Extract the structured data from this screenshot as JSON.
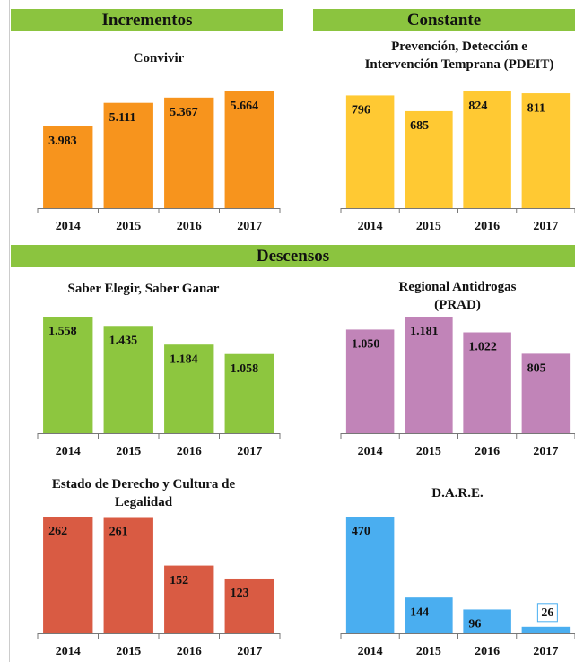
{
  "sections": [
    "Incrementos",
    "Constante",
    "Descensos"
  ],
  "chart_data": [
    {
      "type": "bar",
      "title": "Convivir",
      "categories": [
        "2014",
        "2015",
        "2016",
        "2017"
      ],
      "values": [
        3983,
        5111,
        5367,
        5664
      ],
      "value_labels": [
        "3.983",
        "5.111",
        "5.367",
        "5.664"
      ],
      "color": "#f7941d"
    },
    {
      "type": "bar",
      "title": "Prevención, Detección e Intervención Temprana (PDEIT)",
      "categories": [
        "2014",
        "2015",
        "2016",
        "2017"
      ],
      "values": [
        796,
        685,
        824,
        811
      ],
      "color": "#ffc933"
    },
    {
      "type": "bar",
      "title": "Saber Elegir, Saber Ganar",
      "categories": [
        "2014",
        "2015",
        "2016",
        "2017"
      ],
      "values": [
        1558,
        1435,
        1184,
        1058
      ],
      "value_labels": [
        "1.558",
        "1.435",
        "1.184",
        "1.058"
      ],
      "color": "#8dc63f"
    },
    {
      "type": "bar",
      "title": "Regional Antidrogas (PRAD)",
      "categories": [
        "2014",
        "2015",
        "2016",
        "2017"
      ],
      "values": [
        1050,
        1181,
        1022,
        805
      ],
      "value_labels": [
        "1.050",
        "1.181",
        "1.022",
        "805"
      ],
      "color": "#c184b8"
    },
    {
      "type": "bar",
      "title": "Estado de Derecho y Cultura de Legalidad",
      "categories": [
        "2014",
        "2015",
        "2016",
        "2017"
      ],
      "values": [
        262,
        261,
        152,
        123
      ],
      "color": "#d95b43"
    },
    {
      "type": "bar",
      "title": "D.A.R.E.",
      "categories": [
        "2014",
        "2015",
        "2016",
        "2017"
      ],
      "values": [
        470,
        144,
        96,
        26
      ],
      "color": "#4aaef0"
    }
  ]
}
